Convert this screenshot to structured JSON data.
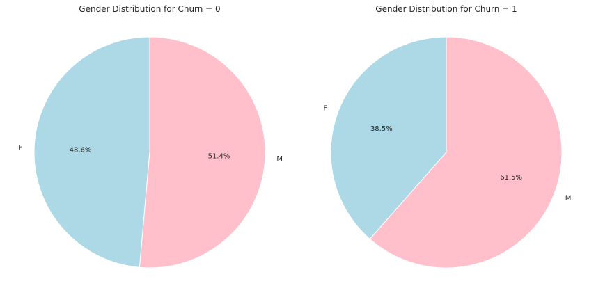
{
  "chart_data": [
    {
      "type": "pie",
      "title": "Gender Distribution for Churn = 0",
      "categories": [
        "F",
        "M"
      ],
      "values": [
        48.6,
        51.4
      ],
      "value_labels": [
        "48.6%",
        "51.4%"
      ],
      "colors": [
        "#add8e6",
        "#ffc0cb"
      ],
      "start_angle_deg": 90,
      "direction": "counterclockwise",
      "legend": "none"
    },
    {
      "type": "pie",
      "title": "Gender Distribution for Churn = 1",
      "categories": [
        "F",
        "M"
      ],
      "values": [
        38.5,
        61.5
      ],
      "value_labels": [
        "38.5%",
        "61.5%"
      ],
      "colors": [
        "#add8e6",
        "#ffc0cb"
      ],
      "start_angle_deg": 90,
      "direction": "counterclockwise",
      "legend": "none"
    }
  ]
}
